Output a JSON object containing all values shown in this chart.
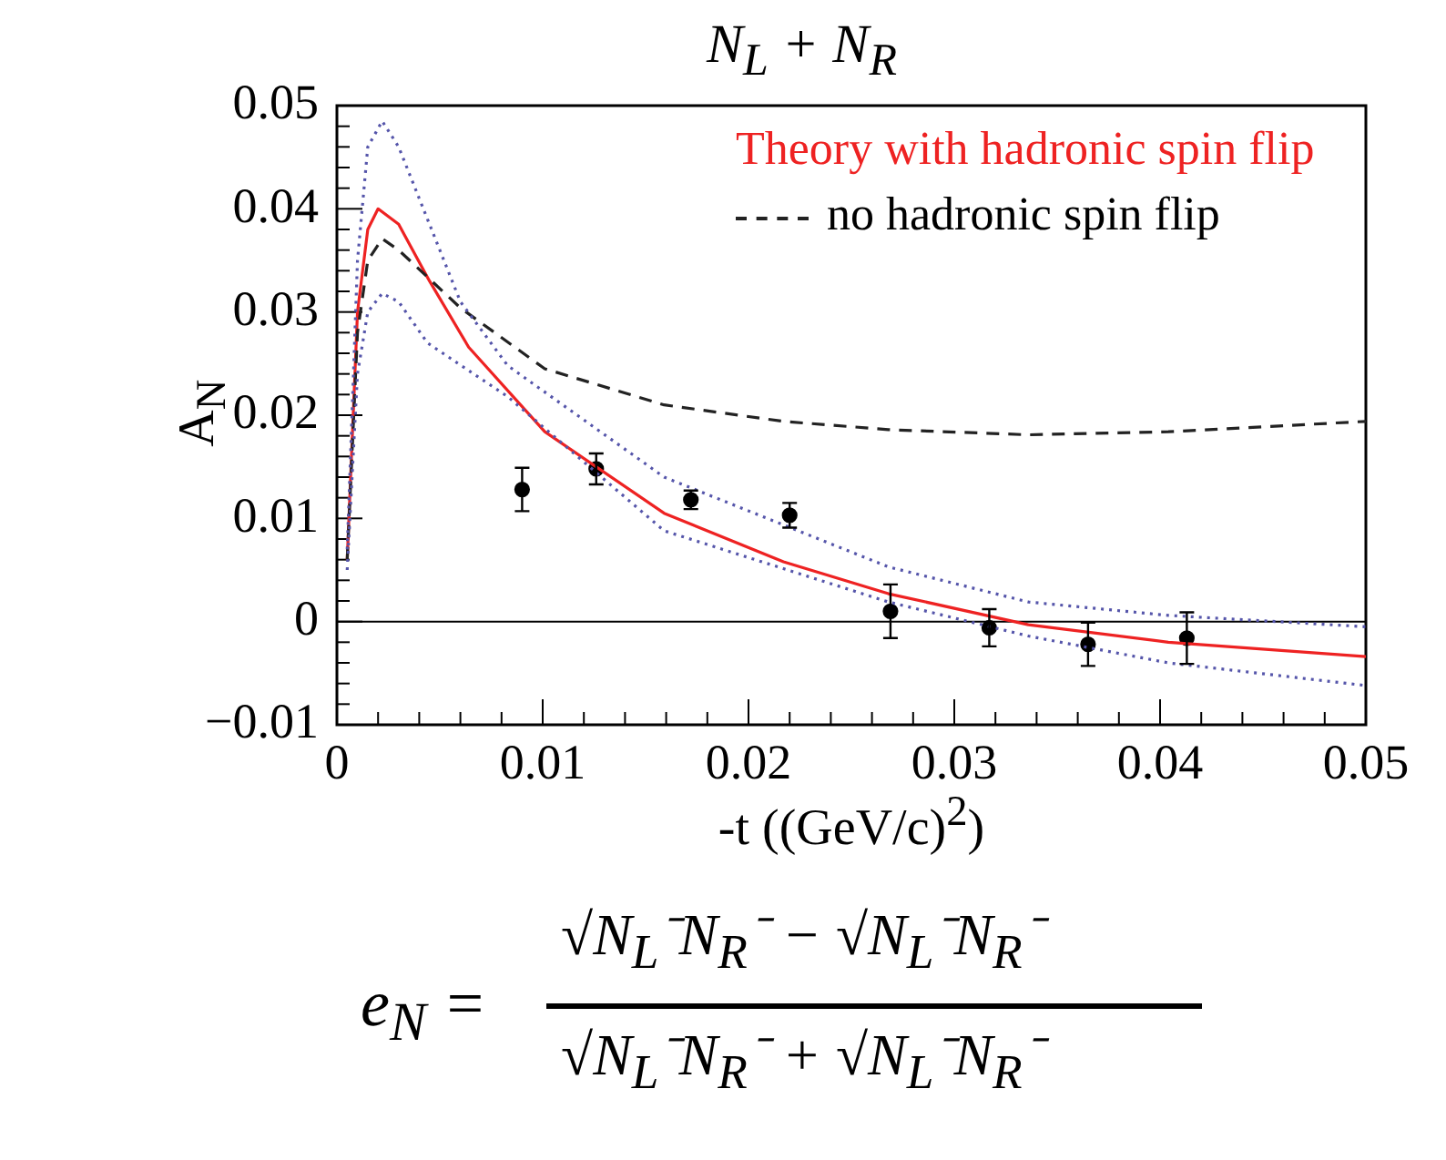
{
  "chart_data": {
    "type": "line",
    "xlabel": "-t ((GeV/c)$^{2}$)",
    "ylabel": "A$_{N}$",
    "xlim": [
      0,
      0.05
    ],
    "ylim": [
      -0.01,
      0.05
    ],
    "xticks": [
      0,
      {
        "value": 0.002,
        "label": null
      },
      {
        "value": 0.004,
        "label": null
      },
      {
        "value": 0.006,
        "label": null
      },
      {
        "value": 0.008,
        "label": null
      },
      0.01,
      {
        "value": 0.012,
        "label": null
      },
      {
        "value": 0.014,
        "label": null
      },
      {
        "value": 0.016,
        "label": null
      },
      {
        "value": 0.018,
        "label": null
      },
      0.02,
      {
        "value": 0.022,
        "label": null
      },
      {
        "value": 0.024,
        "label": null
      },
      {
        "value": 0.026,
        "label": null
      },
      {
        "value": 0.028,
        "label": null
      },
      0.03,
      {
        "value": 0.032,
        "label": null
      },
      {
        "value": 0.034,
        "label": null
      },
      {
        "value": 0.036,
        "label": null
      },
      {
        "value": 0.038,
        "label": null
      },
      0.04,
      {
        "value": 0.042,
        "label": null
      },
      {
        "value": 0.044,
        "label": null
      },
      {
        "value": 0.046,
        "label": null
      },
      {
        "value": 0.048,
        "label": null
      },
      0.05
    ],
    "yticks": [
      {
        "value": -0.01,
        "label": "−0.01"
      },
      {
        "value": -0.008,
        "label": null
      },
      {
        "value": -0.006,
        "label": null
      },
      {
        "value": -0.004,
        "label": null
      },
      {
        "value": -0.002,
        "label": null
      },
      0,
      {
        "value": 0.002,
        "label": null
      },
      {
        "value": 0.004,
        "label": null
      },
      {
        "value": 0.006,
        "label": null
      },
      {
        "value": 0.008,
        "label": null
      },
      0.01,
      {
        "value": 0.012,
        "label": null
      },
      {
        "value": 0.014,
        "label": null
      },
      {
        "value": 0.016,
        "label": null
      },
      {
        "value": 0.018,
        "label": null
      },
      0.02,
      {
        "value": 0.022,
        "label": null
      },
      {
        "value": 0.024,
        "label": null
      },
      {
        "value": 0.026,
        "label": null
      },
      {
        "value": 0.028,
        "label": null
      },
      0.03,
      {
        "value": 0.032,
        "label": null
      },
      {
        "value": 0.034,
        "label": null
      },
      {
        "value": 0.036,
        "label": null
      },
      {
        "value": 0.038,
        "label": null
      },
      0.04,
      {
        "value": 0.042,
        "label": null
      },
      {
        "value": 0.044,
        "label": null
      },
      {
        "value": 0.046,
        "label": null
      },
      {
        "value": 0.048,
        "label": null
      },
      0.05
    ],
    "grid": false,
    "legend": "top right",
    "ref_lines": [
      {
        "axis": "y",
        "value": 0,
        "color": "#000000"
      }
    ],
    "annotations": [
      "N$_{L}$ + N$_{R}$",
      "e$_{N}$ =",
      "√N$_{L}$⁻N$_{R}$⁻ − √N$_{L}$⁻N$_{R}$⁻",
      "√N$_{L}$⁻N$_{R}$⁻ + √N$_{L}$⁻N$_{R}$⁻"
    ],
    "series": [
      {
        "color": "#5555aa",
        "line_style": "dotted",
        "marker": "none",
        "x": [
          0.0005,
          0.001,
          0.0015,
          0.0022,
          0.003,
          0.004,
          0.006,
          0.0083,
          0.0159,
          0.0268,
          0.0336,
          0.0404,
          0.05
        ],
        "values": [
          0.007,
          0.035,
          0.046,
          0.0485,
          0.046,
          0.041,
          0.031,
          0.0248,
          0.014,
          0.0053,
          0.0019,
          0.0006,
          -0.0005
        ]
      },
      {
        "color": "#5555aa",
        "line_style": "dotted",
        "marker": "none",
        "x": [
          0.0005,
          0.001,
          0.0015,
          0.0022,
          0.003,
          0.0044,
          0.0083,
          0.0159,
          0.0268,
          0.0336,
          0.0404,
          0.05
        ],
        "values": [
          0.005,
          0.024,
          0.03,
          0.0318,
          0.031,
          0.027,
          0.0218,
          0.0088,
          0.0019,
          -0.0014,
          -0.004,
          -0.0062
        ]
      },
      {
        "name": "no hadronic spin flip",
        "color": "#222222",
        "line_style": "dashed",
        "marker": "none",
        "x": [
          0.0005,
          0.001,
          0.0015,
          0.0022,
          0.003,
          0.006,
          0.0101,
          0.0159,
          0.0217,
          0.0268,
          0.0336,
          0.0404,
          0.05
        ],
        "values": [
          0.006,
          0.028,
          0.035,
          0.0371,
          0.036,
          0.0304,
          0.0245,
          0.021,
          0.0194,
          0.0186,
          0.0181,
          0.0184,
          0.0194
        ]
      },
      {
        "name": "Theory with hadronic spin flip",
        "color": "#ee2222",
        "line_style": "solid",
        "marker": "none",
        "x": [
          0.0005,
          0.001,
          0.0015,
          0.002,
          0.003,
          0.0045,
          0.0064,
          0.0101,
          0.0159,
          0.0217,
          0.0268,
          0.0336,
          0.0404,
          0.05
        ],
        "values": [
          0.006,
          0.03,
          0.038,
          0.04,
          0.0385,
          0.033,
          0.0266,
          0.0184,
          0.0105,
          0.0058,
          0.0027,
          -0.0003,
          -0.002,
          -0.0034
        ]
      },
      {
        "type": "scatter",
        "color": "#000000",
        "marker": "circle",
        "x": [
          0.009,
          0.0126,
          0.0172,
          0.022,
          0.0269,
          0.0317,
          0.0365,
          0.0413
        ],
        "values": [
          0.0128,
          0.0148,
          0.0118,
          0.0103,
          0.001,
          -0.0006,
          -0.0022,
          -0.0016
        ],
        "errors": [
          0.0021,
          0.0015,
          0.0009,
          0.0012,
          0.0026,
          0.0018,
          0.0021,
          0.0025
        ]
      }
    ]
  }
}
